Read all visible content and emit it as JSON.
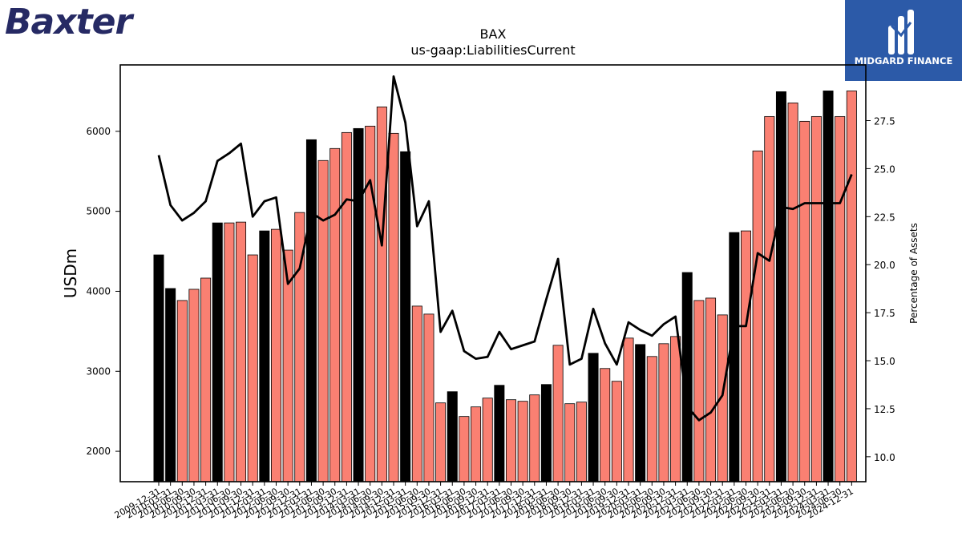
{
  "logos": {
    "left_text": "Baxter",
    "right_text": "MIDGARD FINANCE"
  },
  "chart_data": {
    "type": "bar",
    "title": "BAX",
    "subtitle": "us-gaap:LiabilitiesCurrent",
    "ylabel": "USDm",
    "y2label": "Percentage of Assets",
    "ylim": [
      1620,
      6830
    ],
    "y2lim": [
      8.7,
      30.4
    ],
    "yticks": [
      2000,
      3000,
      4000,
      5000,
      6000
    ],
    "y2ticks": [
      "10.0",
      "12.5",
      "15.0",
      "17.5",
      "20.0",
      "22.5",
      "25.0",
      "27.5"
    ],
    "colors": {
      "annual": "#000000",
      "quarterly": "#fa8072",
      "line": "#000000"
    },
    "categories": [
      "2009-12-31",
      "2010-03-31",
      "2010-06-30",
      "2010-09-30",
      "2010-12-31",
      "2011-03-31",
      "2011-06-30",
      "2011-09-30",
      "2011-12-31",
      "2012-03-31",
      "2012-06-30",
      "2012-09-30",
      "2012-12-31",
      "2013-03-31",
      "2013-06-30",
      "2013-09-30",
      "2013-12-31",
      "2014-03-31",
      "2014-06-30",
      "2014-09-30",
      "2014-12-31",
      "2015-03-31",
      "2015-06-30",
      "2015-09-30",
      "2015-12-31",
      "2016-03-31",
      "2016-06-30",
      "2016-09-30",
      "2016-12-31",
      "2017-03-31",
      "2017-06-30",
      "2017-09-30",
      "2017-12-31",
      "2018-03-31",
      "2018-06-30",
      "2018-09-30",
      "2018-12-31",
      "2019-03-31",
      "2019-06-30",
      "2019-09-30",
      "2019-12-31",
      "2020-03-31",
      "2020-06-30",
      "2020-09-30",
      "2020-12-31",
      "2021-03-31",
      "2021-06-30",
      "2021-09-30",
      "2021-12-31",
      "2022-03-31",
      "2022-06-30",
      "2022-09-30",
      "2022-12-31",
      "2023-03-31",
      "2023-06-30",
      "2023-09-30",
      "2023-12-31",
      "2024-03-31",
      "2024-06-30",
      "2024-12-31"
    ],
    "xtick_labels": [
      "2009-12-31",
      "2010-03-31",
      "2010-06-30",
      "2010-09-30",
      "2010-12-31",
      "2011-03-31",
      "2011-06-30",
      "2011-09-30",
      "2011-12-31",
      "2012-03-31",
      "2012-06-30",
      "2012-09-30",
      "2012-12-31",
      "2013-03-31",
      "2013-06-30",
      "2013-09-30",
      "2013-12-31",
      "2014-03-31",
      "2014-06-30",
      "2014-09-30",
      "2014-12-31",
      "2015-03-31",
      "2015-06-30",
      "2015-09-30",
      "2015-12-31",
      "2016-03-31",
      "2016-06-30",
      "2016-09-30",
      "2016-12-31",
      "2017-03-31",
      "2017-06-30",
      "2017-09-30",
      "2017-12-31",
      "2018-03-31",
      "2018-06-30",
      "2018-09-30",
      "2018-12-31",
      "2019-03-31",
      "2019-06-30",
      "2019-09-30",
      "2019-12-31",
      "2020-03-31",
      "2020-06-30",
      "2020-09-30",
      "2020-12-31",
      "2021-03-31",
      "2021-06-30",
      "2021-09-30",
      "2021-12-31",
      "2022-03-31",
      "2022-06-30",
      "2022-09-30",
      "2022-12-31",
      "2023-03-31",
      "2023-06-30",
      "2023-09-30",
      "2023-12-31",
      "2024-03-31",
      "2024-06-30",
      "2024-12-31"
    ],
    "annual": [
      true,
      true,
      false,
      false,
      false,
      true,
      false,
      false,
      false,
      true,
      false,
      false,
      false,
      true,
      false,
      false,
      false,
      true,
      false,
      false,
      false,
      true,
      false,
      false,
      false,
      true,
      false,
      false,
      false,
      true,
      false,
      false,
      false,
      true,
      false,
      false,
      false,
      true,
      false,
      false,
      false,
      true,
      false,
      false,
      false,
      true,
      false,
      false,
      false,
      true,
      false,
      false,
      false,
      true,
      false,
      false,
      false,
      true,
      false,
      false
    ],
    "values": [
      4455,
      4035,
      3885,
      4025,
      4165,
      4855,
      4855,
      4865,
      4455,
      4755,
      4775,
      4515,
      4985,
      5895,
      5635,
      5785,
      5985,
      6035,
      6065,
      6305,
      5975,
      5745,
      3815,
      3715,
      2605,
      2745,
      2435,
      2555,
      2665,
      2825,
      2645,
      2625,
      2705,
      2835,
      3325,
      2595,
      2615,
      3225,
      3035,
      2875,
      3415,
      3335,
      3185,
      3345,
      3435,
      4235,
      3885,
      3915,
      3705,
      4735,
      4755,
      5755,
      6185,
      6495,
      6355,
      6125,
      6185,
      6505,
      6185,
      6505
    ],
    "pct_of_assets": [
      25.7,
      23.1,
      22.3,
      22.7,
      23.3,
      25.4,
      25.8,
      26.3,
      22.5,
      23.3,
      23.5,
      19.0,
      19.8,
      22.7,
      22.3,
      22.6,
      23.4,
      23.3,
      24.4,
      21.0,
      29.8,
      27.4,
      22.0,
      23.3,
      16.5,
      17.6,
      15.5,
      15.1,
      15.2,
      16.5,
      15.6,
      15.8,
      16.0,
      18.2,
      20.3,
      14.8,
      15.1,
      17.7,
      15.9,
      14.8,
      17.0,
      16.6,
      16.3,
      16.9,
      17.3,
      12.6,
      11.9,
      12.3,
      13.2,
      16.8,
      16.8,
      20.6,
      20.2,
      23.0,
      22.9,
      23.2,
      23.2,
      23.2,
      23.2,
      24.7
    ]
  }
}
